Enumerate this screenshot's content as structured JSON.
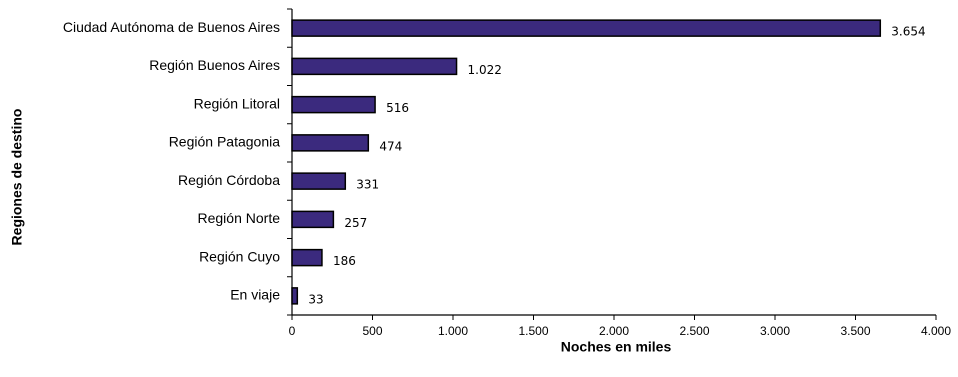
{
  "chart_data": {
    "type": "bar",
    "orientation": "horizontal",
    "categories": [
      "Ciudad Autónoma de Buenos Aires",
      "Región Buenos Aires",
      "Región Litoral",
      "Región Patagonia",
      "Región Córdoba",
      "Región Norte",
      "Región Cuyo",
      "En viaje"
    ],
    "values": [
      3654,
      1022,
      516,
      474,
      331,
      257,
      186,
      33
    ],
    "value_labels": [
      "3.654",
      "1.022",
      "516",
      "474",
      "331",
      "257",
      "186",
      "33"
    ],
    "xlabel": "Noches en miles",
    "ylabel": "Regiones de destino",
    "xlim": [
      0,
      4000
    ],
    "xticks": [
      0,
      500,
      1000,
      1500,
      2000,
      2500,
      3000,
      3500,
      4000
    ],
    "xtick_labels": [
      "0",
      "500",
      "1.000",
      "1.500",
      "2.000",
      "2.500",
      "3.000",
      "3.500",
      "4.000"
    ],
    "grid": false,
    "legend": "none",
    "bar_color": "#3b2a7e"
  }
}
